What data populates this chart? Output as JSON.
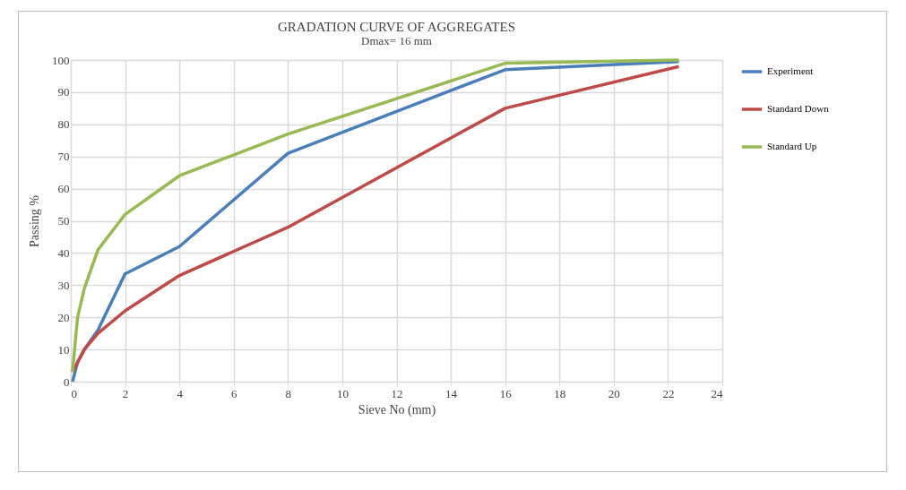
{
  "chart_data": {
    "type": "line",
    "title": "GRADATION CURVE OF AGGREGATES",
    "subtitle": "Dmax= 16 mm",
    "xlabel": "Sieve No (mm)",
    "ylabel": "Passing %",
    "xlim": [
      0,
      24
    ],
    "xticks": [
      0,
      2,
      4,
      6,
      8,
      10,
      12,
      14,
      16,
      18,
      20,
      22,
      24
    ],
    "ylim": [
      0,
      100
    ],
    "yticks": [
      0,
      10,
      20,
      30,
      40,
      50,
      60,
      70,
      80,
      90,
      100
    ],
    "grid": true,
    "legend": "right",
    "marker": "none",
    "line_style": "solid",
    "series": [
      {
        "name": "Experiment",
        "color": "#4a7ebb",
        "x": [
          0.063,
          0.25,
          0.5,
          1,
          2,
          4,
          8,
          16,
          22.4
        ],
        "values": [
          0,
          6,
          10,
          16,
          33.5,
          42,
          71,
          97,
          99.5
        ]
      },
      {
        "name": "Standard Down",
        "color": "#be4b48",
        "x": [
          0.063,
          0.5,
          1,
          2,
          4,
          8,
          16,
          22.4
        ],
        "values": [
          3,
          10,
          15,
          22,
          33,
          48,
          85,
          98
        ]
      },
      {
        "name": "Standard Up",
        "color": "#98b954",
        "x": [
          0.063,
          0.25,
          0.5,
          1,
          2,
          4,
          8,
          16,
          22.4
        ],
        "values": [
          3,
          20,
          29,
          41,
          52,
          64,
          77,
          99,
          100
        ]
      }
    ]
  }
}
